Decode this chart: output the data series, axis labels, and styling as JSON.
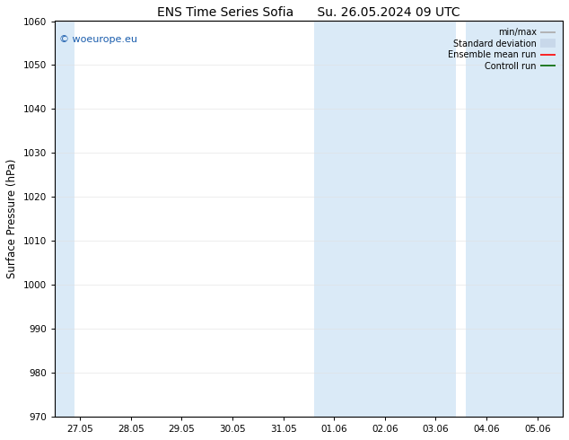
{
  "title_left": "ENS Time Series Sofia",
  "title_right": "Su. 26.05.2024 09 UTC",
  "ylabel": "Surface Pressure (hPa)",
  "ylim": [
    970,
    1060
  ],
  "yticks": [
    970,
    980,
    990,
    1000,
    1010,
    1020,
    1030,
    1040,
    1050,
    1060
  ],
  "xtick_labels": [
    "27.05",
    "28.05",
    "29.05",
    "30.05",
    "31.05",
    "01.06",
    "02.06",
    "03.06",
    "04.06",
    "05.06"
  ],
  "bg_color": "#ffffff",
  "plot_bg_color": "#ffffff",
  "shaded_color": "#daeaf7",
  "watermark": "© woeurope.eu",
  "watermark_color": "#1a5dad",
  "legend_items": [
    {
      "label": "min/max",
      "color": "#aaaaaa",
      "lw": 1.2,
      "style": "solid"
    },
    {
      "label": "Standard deviation",
      "color": "#c8d8ea",
      "lw": 7,
      "style": "solid"
    },
    {
      "label": "Ensemble mean run",
      "color": "#ff0000",
      "lw": 1.2,
      "style": "solid"
    },
    {
      "label": "Controll run",
      "color": "#006600",
      "lw": 1.2,
      "style": "solid"
    }
  ],
  "figsize": [
    6.34,
    4.9
  ],
  "dpi": 100,
  "title_fontsize": 10,
  "tick_fontsize": 7.5,
  "ylabel_fontsize": 8.5,
  "watermark_fontsize": 8,
  "legend_fontsize": 7
}
